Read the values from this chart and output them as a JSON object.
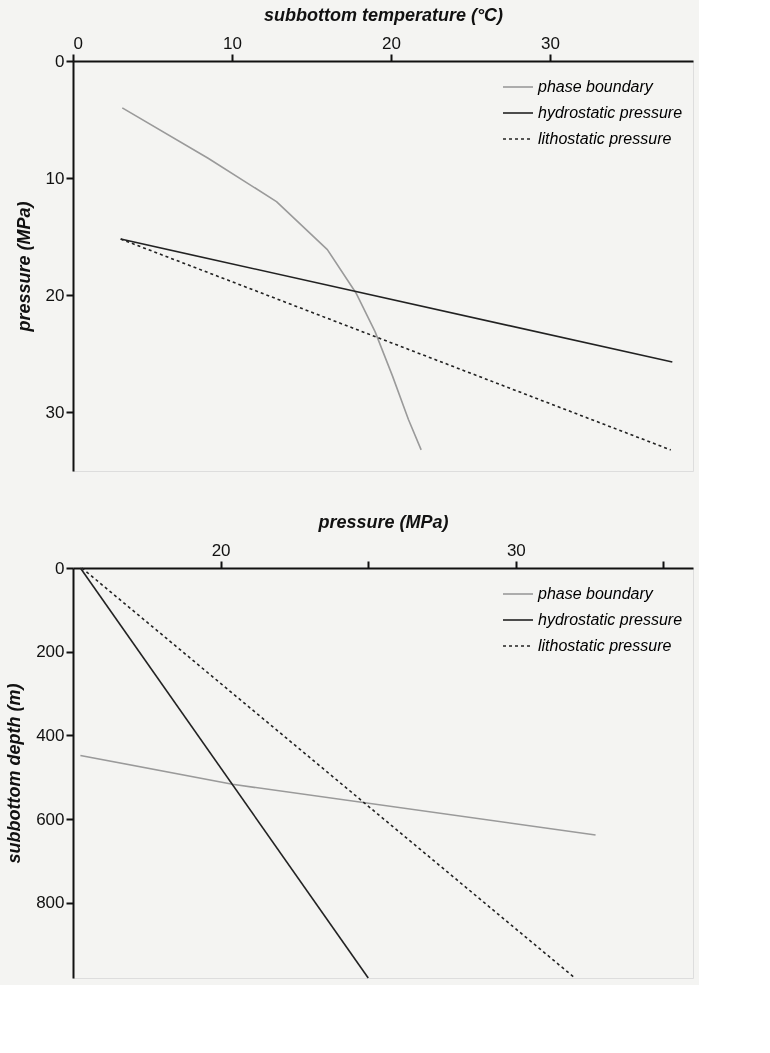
{
  "chart_data": [
    {
      "type": "line",
      "xlabel": "subbottom temperature (°C)",
      "ylabel": "pressure (MPa)",
      "xlim": [
        0,
        39
      ],
      "ylim": [
        35,
        0
      ],
      "xticks": [
        0,
        10,
        20,
        30
      ],
      "yticks": [
        0,
        10,
        20,
        30
      ],
      "grid": false,
      "legend": "top right",
      "marker": "none",
      "series": [
        {
          "name": "phase boundary",
          "color": "#9a9a9a",
          "line_style": "solid",
          "x": [
            3.1,
            8.5,
            12.8,
            16.0,
            17.8,
            19.0,
            20.1,
            21.1,
            21.9
          ],
          "values": [
            4.0,
            8.3,
            12.0,
            16.1,
            19.8,
            23.1,
            26.9,
            30.6,
            33.2
          ]
        },
        {
          "name": "hydrostatic pressure",
          "color": "#222222",
          "line_style": "solid",
          "x": [
            3.0,
            37.7
          ],
          "values": [
            15.2,
            25.7
          ]
        },
        {
          "name": "lithostatic pressure",
          "color": "#222222",
          "line_style": "dotted",
          "x": [
            3.0,
            37.6
          ],
          "values": [
            15.2,
            33.2
          ]
        }
      ]
    },
    {
      "type": "line",
      "xlabel": "pressure (MPa)",
      "ylabel": "subbottom depth (m)",
      "xlim": [
        15,
        36
      ],
      "ylim": [
        980,
        0
      ],
      "xticks": [
        {
          "value": 20,
          "label": "20"
        },
        {
          "value": 25,
          "label": null
        },
        {
          "value": 30,
          "label": "30"
        },
        {
          "value": 35,
          "label": null
        }
      ],
      "yticks": [
        0,
        200,
        400,
        600,
        800
      ],
      "grid": false,
      "legend": "top right",
      "marker": "none",
      "series": [
        {
          "name": "phase boundary",
          "color": "#9a9a9a",
          "line_style": "solid",
          "x": [
            15.25,
            20.4,
            32.7
          ],
          "values": [
            448,
            517,
            638
          ]
        },
        {
          "name": "hydrostatic pressure",
          "color": "#222222",
          "line_style": "solid",
          "x": [
            15.25,
            25.0
          ],
          "values": [
            0,
            980
          ]
        },
        {
          "name": "lithostatic pressure",
          "color": "#222222",
          "line_style": "dotted",
          "x": [
            15.3,
            32.0
          ],
          "values": [
            0,
            980
          ]
        }
      ]
    }
  ]
}
